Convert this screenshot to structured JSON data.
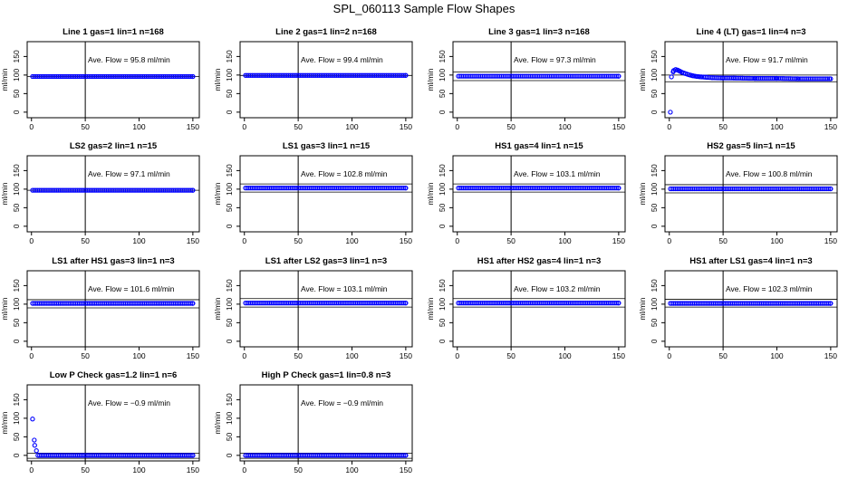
{
  "title": "SPL_060113  Sample Flow Shapes",
  "colors": {
    "points": "#0000ff",
    "axes": "#000000"
  },
  "axes": {
    "xticks": [
      0,
      50,
      100,
      150
    ],
    "yticks": [
      0,
      50,
      100,
      150
    ],
    "xlim": [
      -4,
      156
    ],
    "ylim": [
      -15,
      190
    ],
    "ylabel": "ml/min",
    "vline_x": 50
  },
  "annotation_prefix": "Ave. Flow = ",
  "annotation_unit": "ml/min",
  "chart_data": [
    {
      "type": "scatter",
      "title": "Line 1 gas=1 lin=1 n=168",
      "ave": "95.8",
      "x": [
        1,
        150
      ],
      "y": [
        96,
        96
      ],
      "band": [
        96,
        96
      ],
      "extra_points": []
    },
    {
      "type": "scatter",
      "title": "Line 2 gas=1 lin=2 n=168",
      "ave": "99.4",
      "x": [
        1,
        150
      ],
      "y": [
        99,
        99
      ],
      "band": [
        99,
        99
      ],
      "extra_points": []
    },
    {
      "type": "scatter",
      "title": "Line 3 gas=1 lin=3 n=168",
      "ave": "97.3",
      "x": [
        1,
        150
      ],
      "y": [
        97,
        97
      ],
      "band": [
        85,
        108
      ],
      "extra_points": []
    },
    {
      "type": "scatter",
      "title": "Line 4 (LT) gas=1 lin=4 n=3",
      "ave": "91.7",
      "x": [
        2,
        4,
        6,
        8,
        10,
        12,
        15,
        18,
        22,
        26,
        30,
        35,
        40,
        50,
        60,
        80,
        100,
        120,
        150
      ],
      "y": [
        95,
        112,
        115,
        113,
        110,
        107,
        104,
        101,
        98,
        96,
        95,
        94,
        93,
        92,
        92,
        91,
        91,
        90,
        90
      ],
      "band": [
        82,
        100
      ],
      "extra_points": [
        [
          1,
          0
        ]
      ]
    },
    {
      "type": "scatter",
      "title": "LS2 gas=2 lin=1 n=15",
      "ave": "97.1",
      "x": [
        1,
        150
      ],
      "y": [
        97,
        97
      ],
      "band": [
        97,
        97
      ],
      "extra_points": []
    },
    {
      "type": "scatter",
      "title": "LS1 gas=3 lin=1 n=15",
      "ave": "102.8",
      "x": [
        1,
        150
      ],
      "y": [
        103,
        103
      ],
      "band": [
        92,
        114
      ],
      "extra_points": []
    },
    {
      "type": "scatter",
      "title": "HS1 gas=4 lin=1 n=15",
      "ave": "103.1",
      "x": [
        1,
        150
      ],
      "y": [
        103,
        103
      ],
      "band": [
        92,
        114
      ],
      "extra_points": []
    },
    {
      "type": "scatter",
      "title": "HS2 gas=5 lin=1 n=15",
      "ave": "100.8",
      "x": [
        1,
        150
      ],
      "y": [
        101,
        101
      ],
      "band": [
        90,
        112
      ],
      "extra_points": []
    },
    {
      "type": "scatter",
      "title": "LS1 after HS1 gas=3 lin=1 n=3",
      "ave": "101.6",
      "x": [
        1,
        150
      ],
      "y": [
        102,
        102
      ],
      "band": [
        90,
        112
      ],
      "extra_points": []
    },
    {
      "type": "scatter",
      "title": "LS1 after LS2 gas=3 lin=1 n=3",
      "ave": "103.1",
      "x": [
        1,
        150
      ],
      "y": [
        103,
        103
      ],
      "band": [
        92,
        115
      ],
      "extra_points": []
    },
    {
      "type": "scatter",
      "title": "HS1 after HS2 gas=4 lin=1 n=3",
      "ave": "103.2",
      "x": [
        1,
        150
      ],
      "y": [
        103,
        103
      ],
      "band": [
        92,
        115
      ],
      "extra_points": []
    },
    {
      "type": "scatter",
      "title": "HS1 after LS1 gas=4 lin=1 n=3",
      "ave": "102.3",
      "x": [
        1,
        150
      ],
      "y": [
        102,
        102
      ],
      "band": [
        92,
        113
      ],
      "extra_points": []
    },
    {
      "type": "scatter",
      "title": "Low P Check gas=1.2 lin=1 n=6",
      "ave": "−0.9",
      "x": [
        1,
        3,
        6,
        150
      ],
      "y": [
        98,
        27,
        0,
        0
      ],
      "band": [
        -8,
        6
      ],
      "extra_points": []
    },
    {
      "type": "scatter",
      "title": "High P Check gas=1 lin=0.8 n=3",
      "ave": "−0.9",
      "x": [
        1,
        150
      ],
      "y": [
        0,
        0
      ],
      "band": [
        -8,
        6
      ],
      "extra_points": []
    }
  ]
}
